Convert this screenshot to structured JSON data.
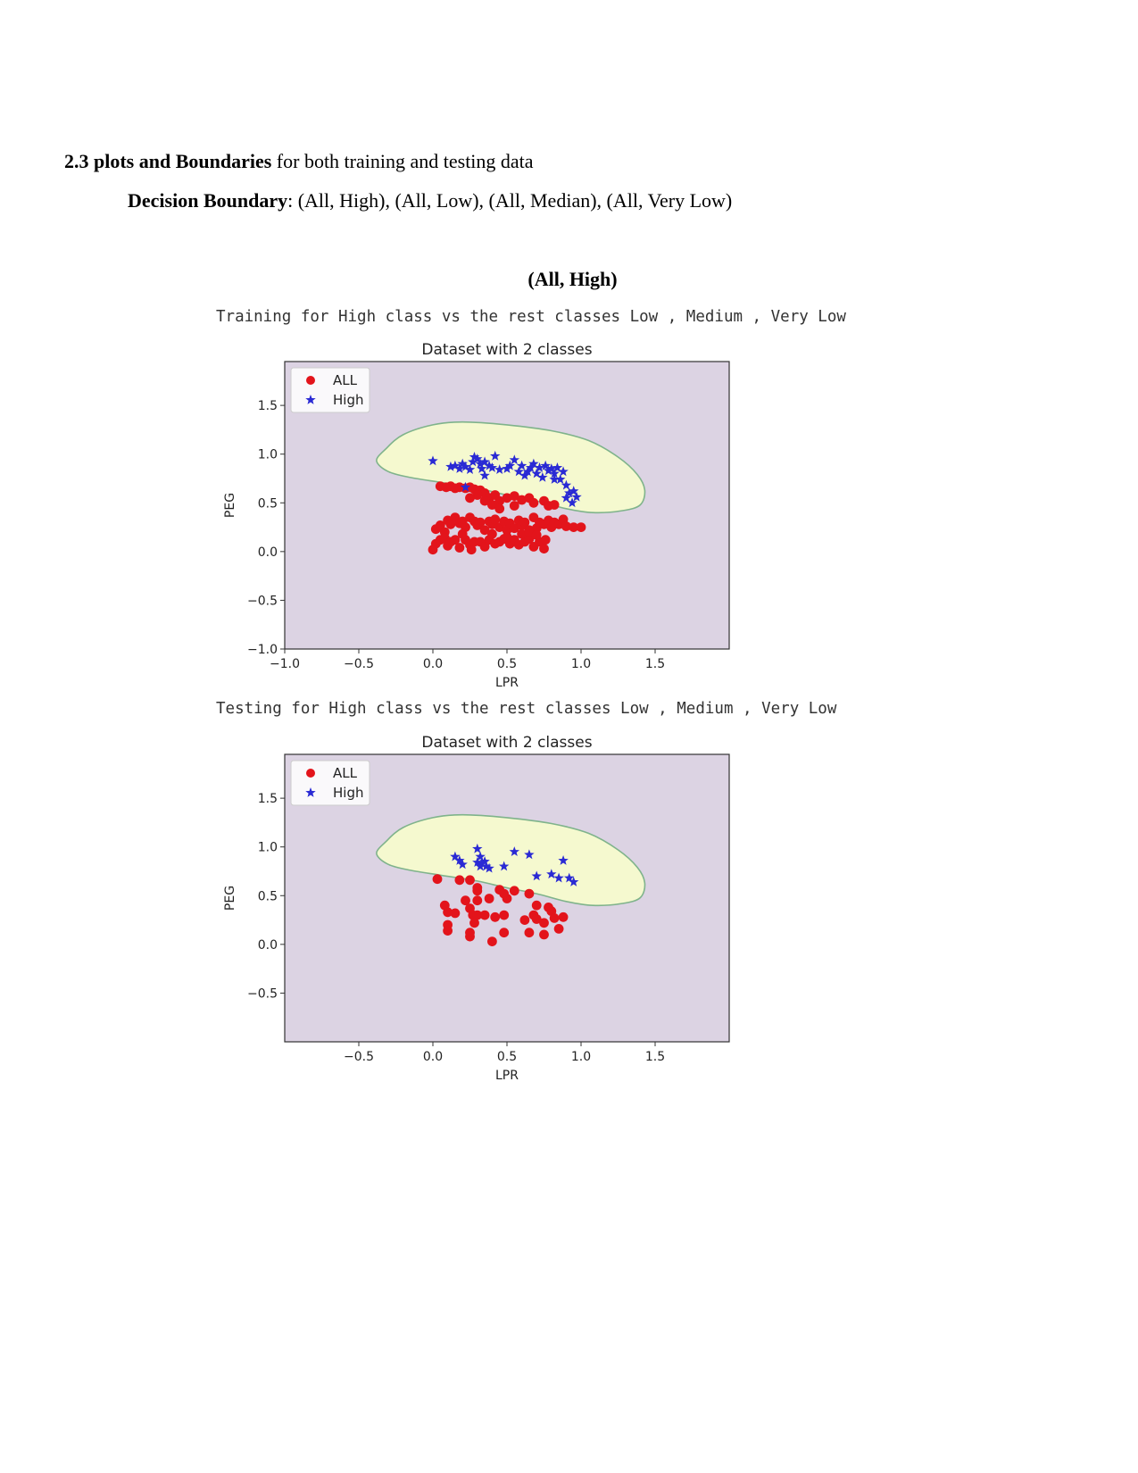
{
  "heading": {
    "number_bold": "2.3 plots and Boundaries",
    "rest": " for both training and testing data"
  },
  "subheading": {
    "bold": "Decision Boundary",
    "rest": ": (All, High), (All, Low), (All, Median), (All, Very Low)"
  },
  "section_caption": "(All, High)",
  "print_lines": [
    "Training for High class vs the rest classes Low , Medium , Very Low",
    "Testing for High class vs the rest classes Low , Medium , Very Low"
  ],
  "colors": {
    "background_region": "#dcd3e3",
    "boundary_region": "#f5f9cf",
    "boundary_edge": "#7fb38b",
    "all_marker": "#e3141b",
    "high_marker": "#2a2ad4"
  },
  "chart_data": [
    {
      "type": "scatter",
      "title": "Dataset with 2 classes",
      "xlabel": "LPR",
      "ylabel": "PEG",
      "xlim": [
        -1.0,
        2.0
      ],
      "ylim": [
        -1.0,
        1.95
      ],
      "xticks": [
        -1.0,
        -0.5,
        0.0,
        0.5,
        1.0,
        1.5
      ],
      "xtick_labels": [
        "−1.0",
        "−0.5",
        "0.0",
        "0.5",
        "1.0",
        "1.5"
      ],
      "yticks": [
        -1.0,
        -0.5,
        0.0,
        0.5,
        1.0,
        1.5
      ],
      "ytick_labels": [
        "−1.0",
        "−0.5",
        "0.0",
        "0.5",
        "1.0",
        "1.5"
      ],
      "legend": {
        "position": "upper-left",
        "entries": [
          "ALL",
          "High"
        ]
      },
      "decision_boundary": [
        [
          -0.38,
          0.93
        ],
        [
          -0.32,
          1.05
        ],
        [
          -0.2,
          1.2
        ],
        [
          0.0,
          1.3
        ],
        [
          0.2,
          1.33
        ],
        [
          0.5,
          1.3
        ],
        [
          0.8,
          1.24
        ],
        [
          1.05,
          1.14
        ],
        [
          1.25,
          0.97
        ],
        [
          1.38,
          0.79
        ],
        [
          1.43,
          0.63
        ],
        [
          1.4,
          0.48
        ],
        [
          1.28,
          0.42
        ],
        [
          1.08,
          0.4
        ],
        [
          0.9,
          0.44
        ],
        [
          0.7,
          0.52
        ],
        [
          0.5,
          0.58
        ],
        [
          0.3,
          0.65
        ],
        [
          0.05,
          0.71
        ],
        [
          -0.15,
          0.76
        ],
        [
          -0.3,
          0.82
        ]
      ],
      "series": [
        {
          "name": "ALL",
          "marker": "circle",
          "points": [
            [
              0.05,
              0.67
            ],
            [
              0.09,
              0.66
            ],
            [
              0.12,
              0.67
            ],
            [
              0.15,
              0.65
            ],
            [
              0.18,
              0.66
            ],
            [
              0.22,
              0.65
            ],
            [
              0.25,
              0.66
            ],
            [
              0.28,
              0.64
            ],
            [
              0.32,
              0.63
            ],
            [
              0.35,
              0.6
            ],
            [
              0.3,
              0.58
            ],
            [
              0.38,
              0.55
            ],
            [
              0.42,
              0.58
            ],
            [
              0.45,
              0.52
            ],
            [
              0.5,
              0.55
            ],
            [
              0.55,
              0.57
            ],
            [
              0.6,
              0.53
            ],
            [
              0.65,
              0.55
            ],
            [
              0.68,
              0.5
            ],
            [
              0.75,
              0.52
            ],
            [
              0.78,
              0.47
            ],
            [
              0.82,
              0.48
            ],
            [
              0.25,
              0.55
            ],
            [
              0.35,
              0.52
            ],
            [
              0.4,
              0.48
            ],
            [
              0.45,
              0.44
            ],
            [
              0.55,
              0.47
            ],
            [
              0.02,
              0.23
            ],
            [
              0.05,
              0.27
            ],
            [
              0.08,
              0.2
            ],
            [
              0.1,
              0.32
            ],
            [
              0.12,
              0.28
            ],
            [
              0.15,
              0.35
            ],
            [
              0.18,
              0.29
            ],
            [
              0.2,
              0.31
            ],
            [
              0.22,
              0.25
            ],
            [
              0.25,
              0.35
            ],
            [
              0.28,
              0.31
            ],
            [
              0.3,
              0.27
            ],
            [
              0.32,
              0.3
            ],
            [
              0.35,
              0.22
            ],
            [
              0.38,
              0.31
            ],
            [
              0.4,
              0.28
            ],
            [
              0.42,
              0.33
            ],
            [
              0.45,
              0.25
            ],
            [
              0.48,
              0.31
            ],
            [
              0.5,
              0.22
            ],
            [
              0.52,
              0.29
            ],
            [
              0.55,
              0.24
            ],
            [
              0.58,
              0.32
            ],
            [
              0.6,
              0.27
            ],
            [
              0.62,
              0.3
            ],
            [
              0.65,
              0.22
            ],
            [
              0.68,
              0.35
            ],
            [
              0.7,
              0.24
            ],
            [
              0.72,
              0.3
            ],
            [
              0.75,
              0.28
            ],
            [
              0.78,
              0.32
            ],
            [
              0.8,
              0.25
            ],
            [
              0.82,
              0.3
            ],
            [
              0.85,
              0.28
            ],
            [
              0.88,
              0.33
            ],
            [
              0.9,
              0.26
            ],
            [
              0.95,
              0.25
            ],
            [
              1.0,
              0.25
            ],
            [
              0.02,
              0.08
            ],
            [
              0.05,
              0.12
            ],
            [
              0.08,
              0.14
            ],
            [
              0.1,
              0.06
            ],
            [
              0.12,
              0.1
            ],
            [
              0.15,
              0.12
            ],
            [
              0.18,
              0.04
            ],
            [
              0.22,
              0.12
            ],
            [
              0.25,
              0.07
            ],
            [
              0.28,
              0.1
            ],
            [
              0.32,
              0.1
            ],
            [
              0.35,
              0.05
            ],
            [
              0.38,
              0.12
            ],
            [
              0.42,
              0.08
            ],
            [
              0.45,
              0.1
            ],
            [
              0.48,
              0.13
            ],
            [
              0.52,
              0.08
            ],
            [
              0.55,
              0.12
            ],
            [
              0.58,
              0.07
            ],
            [
              0.62,
              0.1
            ],
            [
              0.65,
              0.13
            ],
            [
              0.68,
              0.05
            ],
            [
              0.72,
              0.1
            ],
            [
              0.75,
              0.03
            ],
            [
              0.6,
              0.18
            ],
            [
              0.5,
              0.15
            ],
            [
              0.65,
              0.2
            ],
            [
              0.7,
              0.17
            ],
            [
              0.4,
              0.18
            ],
            [
              0.2,
              0.18
            ],
            [
              0.0,
              0.02
            ],
            [
              0.26,
              0.02
            ],
            [
              0.76,
              0.12
            ]
          ]
        },
        {
          "name": "High",
          "marker": "star",
          "points": [
            [
              0.0,
              0.93
            ],
            [
              0.12,
              0.87
            ],
            [
              0.15,
              0.88
            ],
            [
              0.18,
              0.85
            ],
            [
              0.2,
              0.9
            ],
            [
              0.22,
              0.87
            ],
            [
              0.25,
              0.84
            ],
            [
              0.27,
              0.92
            ],
            [
              0.28,
              0.97
            ],
            [
              0.3,
              0.95
            ],
            [
              0.32,
              0.9
            ],
            [
              0.33,
              0.85
            ],
            [
              0.35,
              0.92
            ],
            [
              0.38,
              0.88
            ],
            [
              0.4,
              0.86
            ],
            [
              0.42,
              0.98
            ],
            [
              0.45,
              0.84
            ],
            [
              0.5,
              0.85
            ],
            [
              0.52,
              0.88
            ],
            [
              0.55,
              0.94
            ],
            [
              0.58,
              0.82
            ],
            [
              0.6,
              0.88
            ],
            [
              0.62,
              0.78
            ],
            [
              0.64,
              0.82
            ],
            [
              0.66,
              0.86
            ],
            [
              0.68,
              0.9
            ],
            [
              0.7,
              0.8
            ],
            [
              0.72,
              0.86
            ],
            [
              0.74,
              0.76
            ],
            [
              0.76,
              0.88
            ],
            [
              0.78,
              0.83
            ],
            [
              0.8,
              0.85
            ],
            [
              0.82,
              0.8
            ],
            [
              0.84,
              0.86
            ],
            [
              0.86,
              0.74
            ],
            [
              0.88,
              0.82
            ],
            [
              0.9,
              0.68
            ],
            [
              0.92,
              0.6
            ],
            [
              0.95,
              0.62
            ],
            [
              0.97,
              0.56
            ],
            [
              0.9,
              0.55
            ],
            [
              0.22,
              0.66
            ],
            [
              0.94,
              0.5
            ],
            [
              0.35,
              0.78
            ],
            [
              0.82,
              0.74
            ]
          ]
        }
      ]
    },
    {
      "type": "scatter",
      "title": "Dataset with 2 classes",
      "xlabel": "LPR",
      "ylabel": "PEG",
      "xlim": [
        -1.0,
        2.0
      ],
      "ylim": [
        -1.0,
        1.95
      ],
      "xticks": [
        -0.5,
        0.0,
        0.5,
        1.0,
        1.5
      ],
      "xtick_labels": [
        "−0.5",
        "0.0",
        "0.5",
        "1.0",
        "1.5"
      ],
      "yticks": [
        -0.5,
        0.0,
        0.5,
        1.0,
        1.5
      ],
      "ytick_labels": [
        "−0.5",
        "0.0",
        "0.5",
        "1.0",
        "1.5"
      ],
      "legend": {
        "position": "upper-left",
        "entries": [
          "ALL",
          "High"
        ]
      },
      "decision_boundary": [
        [
          -0.38,
          0.93
        ],
        [
          -0.32,
          1.05
        ],
        [
          -0.2,
          1.2
        ],
        [
          0.0,
          1.3
        ],
        [
          0.2,
          1.33
        ],
        [
          0.5,
          1.3
        ],
        [
          0.8,
          1.24
        ],
        [
          1.05,
          1.14
        ],
        [
          1.25,
          0.97
        ],
        [
          1.38,
          0.79
        ],
        [
          1.43,
          0.63
        ],
        [
          1.4,
          0.48
        ],
        [
          1.28,
          0.42
        ],
        [
          1.08,
          0.4
        ],
        [
          0.9,
          0.44
        ],
        [
          0.7,
          0.52
        ],
        [
          0.5,
          0.58
        ],
        [
          0.3,
          0.65
        ],
        [
          0.05,
          0.71
        ],
        [
          -0.15,
          0.76
        ],
        [
          -0.3,
          0.82
        ]
      ],
      "series": [
        {
          "name": "ALL",
          "marker": "circle",
          "points": [
            [
              0.03,
              0.67
            ],
            [
              0.18,
              0.66
            ],
            [
              0.25,
              0.66
            ],
            [
              0.3,
              0.58
            ],
            [
              0.3,
              0.55
            ],
            [
              0.45,
              0.56
            ],
            [
              0.5,
              0.47
            ],
            [
              0.48,
              0.52
            ],
            [
              0.55,
              0.55
            ],
            [
              0.38,
              0.47
            ],
            [
              0.3,
              0.45
            ],
            [
              0.22,
              0.45
            ],
            [
              0.08,
              0.4
            ],
            [
              0.1,
              0.33
            ],
            [
              0.15,
              0.32
            ],
            [
              0.25,
              0.37
            ],
            [
              0.27,
              0.3
            ],
            [
              0.3,
              0.3
            ],
            [
              0.35,
              0.3
            ],
            [
              0.42,
              0.28
            ],
            [
              0.48,
              0.3
            ],
            [
              0.28,
              0.22
            ],
            [
              0.1,
              0.14
            ],
            [
              0.1,
              0.2
            ],
            [
              0.25,
              0.08
            ],
            [
              0.25,
              0.12
            ],
            [
              0.4,
              0.03
            ],
            [
              0.48,
              0.12
            ],
            [
              0.65,
              0.52
            ],
            [
              0.7,
              0.4
            ],
            [
              0.68,
              0.3
            ],
            [
              0.7,
              0.26
            ],
            [
              0.75,
              0.22
            ],
            [
              0.78,
              0.38
            ],
            [
              0.8,
              0.34
            ],
            [
              0.82,
              0.27
            ],
            [
              0.85,
              0.16
            ],
            [
              0.75,
              0.1
            ],
            [
              0.65,
              0.12
            ],
            [
              0.62,
              0.25
            ],
            [
              0.88,
              0.28
            ]
          ]
        },
        {
          "name": "High",
          "marker": "star",
          "points": [
            [
              0.15,
              0.9
            ],
            [
              0.18,
              0.86
            ],
            [
              0.2,
              0.82
            ],
            [
              0.3,
              0.98
            ],
            [
              0.32,
              0.9
            ],
            [
              0.3,
              0.84
            ],
            [
              0.32,
              0.8
            ],
            [
              0.35,
              0.85
            ],
            [
              0.38,
              0.78
            ],
            [
              0.48,
              0.8
            ],
            [
              0.55,
              0.95
            ],
            [
              0.65,
              0.92
            ],
            [
              0.7,
              0.7
            ],
            [
              0.8,
              0.72
            ],
            [
              0.88,
              0.86
            ],
            [
              0.92,
              0.68
            ],
            [
              0.95,
              0.64
            ],
            [
              0.85,
              0.68
            ],
            [
              0.33,
              0.83
            ],
            [
              0.36,
              0.8
            ]
          ]
        }
      ]
    }
  ]
}
